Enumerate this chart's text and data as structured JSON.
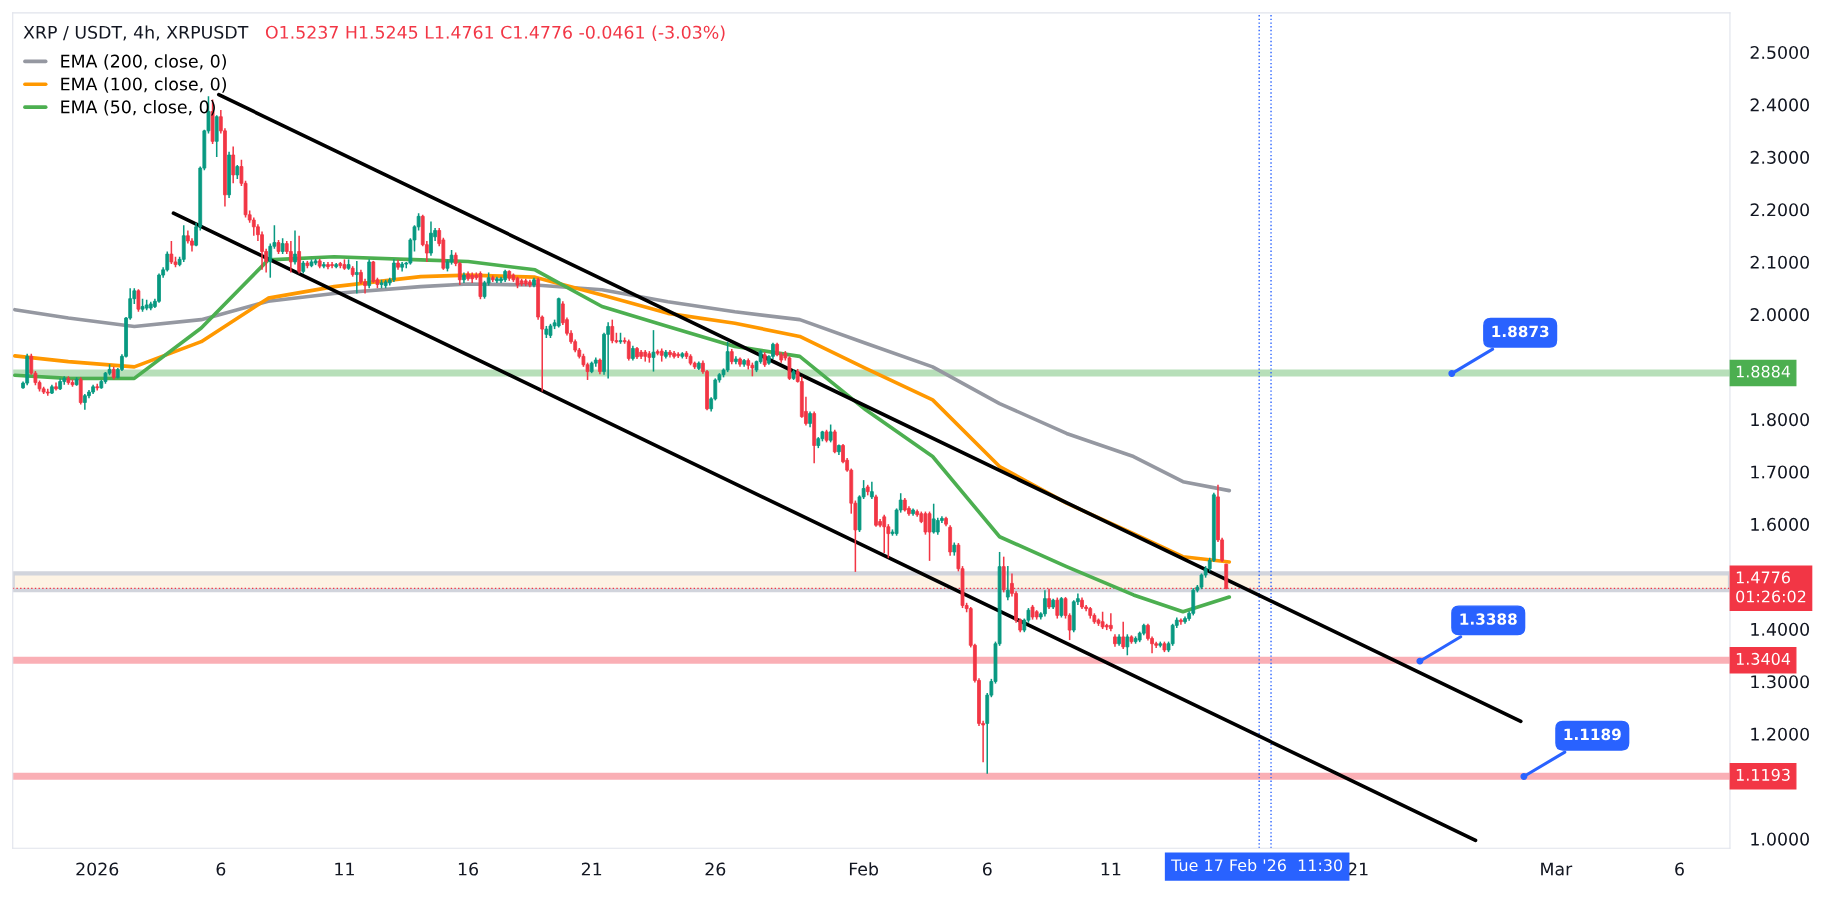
{
  "chart_data": {
    "type": "candlestick",
    "title": "XRP / USDT, 4h, XRPUSDT",
    "subtitle": "O1.5237 H1.5245 L1.4761 C1.4776 -0.0461 (-3.03%)",
    "xlim": [
      "2025-12-28T14:00",
      "2026-03-08T01:00"
    ],
    "ylim": [
      0.982,
      2.575
    ],
    "xticks": [
      {
        "value": "2026-01-01",
        "label": "2026"
      },
      {
        "value": "2026-01-06",
        "label": "6"
      },
      {
        "value": "2026-01-11",
        "label": "11"
      },
      {
        "value": "2026-01-16",
        "label": "16"
      },
      {
        "value": "2026-01-21",
        "label": "21"
      },
      {
        "value": "2026-01-26",
        "label": "26"
      },
      {
        "value": "2026-02-01",
        "label": "Feb"
      },
      {
        "value": "2026-02-06",
        "label": "6"
      },
      {
        "value": "2026-02-11",
        "label": "11"
      },
      {
        "value": "2026-02-21",
        "label": "21"
      },
      {
        "value": "2026-03-01",
        "label": "Mar"
      },
      {
        "value": "2026-03-06",
        "label": "6"
      }
    ],
    "yticks": [
      {
        "value": 1.0,
        "label": "1.0000"
      },
      {
        "value": 1.2,
        "label": "1.2000"
      },
      {
        "value": 1.3,
        "label": "1.3000"
      },
      {
        "value": 1.4,
        "label": "1.4000"
      },
      {
        "value": 1.6,
        "label": "1.6000"
      },
      {
        "value": 1.7,
        "label": "1.7000"
      },
      {
        "value": 1.8,
        "label": "1.8000"
      },
      {
        "value": 2.0,
        "label": "2.0000"
      },
      {
        "value": 2.1,
        "label": "2.1000"
      },
      {
        "value": 2.2,
        "label": "2.2000"
      },
      {
        "value": 2.3,
        "label": "2.3000"
      },
      {
        "value": 2.4,
        "label": "2.4000"
      },
      {
        "value": 2.5,
        "label": "2.5000"
      }
    ],
    "legend": "top left",
    "x": [
      "2025-12-29T00:00",
      "2025-12-29T04:00",
      "2025-12-29T08:00",
      "2025-12-29T12:00",
      "2025-12-29T16:00",
      "2025-12-29T20:00",
      "2025-12-30T00:00",
      "2025-12-30T04:00",
      "2025-12-30T08:00",
      "2025-12-30T12:00",
      "2025-12-30T16:00",
      "2025-12-30T20:00",
      "2025-12-31T00:00",
      "2025-12-31T04:00",
      "2025-12-31T08:00",
      "2025-12-31T12:00",
      "2025-12-31T16:00",
      "2025-12-31T20:00",
      "2026-01-01T00:00",
      "2026-01-01T04:00",
      "2026-01-01T08:00",
      "2026-01-01T12:00",
      "2026-01-01T16:00",
      "2026-01-01T20:00",
      "2026-01-02T00:00",
      "2026-01-02T04:00",
      "2026-01-02T08:00",
      "2026-01-02T12:00",
      "2026-01-02T16:00",
      "2026-01-02T20:00",
      "2026-01-03T00:00",
      "2026-01-03T04:00",
      "2026-01-03T08:00",
      "2026-01-03T12:00",
      "2026-01-03T16:00",
      "2026-01-03T20:00",
      "2026-01-04T00:00",
      "2026-01-04T04:00",
      "2026-01-04T08:00",
      "2026-01-04T12:00",
      "2026-01-04T16:00",
      "2026-01-04T20:00",
      "2026-01-05T00:00",
      "2026-01-05T04:00",
      "2026-01-05T08:00",
      "2026-01-05T12:00",
      "2026-01-05T16:00",
      "2026-01-05T20:00",
      "2026-01-06T00:00",
      "2026-01-06T04:00",
      "2026-01-06T08:00",
      "2026-01-06T12:00",
      "2026-01-06T16:00",
      "2026-01-06T20:00",
      "2026-01-07T00:00",
      "2026-01-07T04:00",
      "2026-01-07T08:00",
      "2026-01-07T12:00",
      "2026-01-07T16:00",
      "2026-01-07T20:00",
      "2026-01-08T00:00",
      "2026-01-08T04:00",
      "2026-01-08T08:00",
      "2026-01-08T12:00",
      "2026-01-08T16:00",
      "2026-01-08T20:00",
      "2026-01-09T00:00",
      "2026-01-09T04:00",
      "2026-01-09T08:00",
      "2026-01-09T12:00",
      "2026-01-09T16:00",
      "2026-01-09T20:00",
      "2026-01-10T00:00",
      "2026-01-10T04:00",
      "2026-01-10T08:00",
      "2026-01-10T12:00",
      "2026-01-10T16:00",
      "2026-01-10T20:00",
      "2026-01-11T00:00",
      "2026-01-11T04:00",
      "2026-01-11T08:00",
      "2026-01-11T12:00",
      "2026-01-11T16:00",
      "2026-01-11T20:00",
      "2026-01-12T00:00",
      "2026-01-12T04:00",
      "2026-01-12T08:00",
      "2026-01-12T12:00",
      "2026-01-12T16:00",
      "2026-01-12T20:00",
      "2026-01-13T00:00",
      "2026-01-13T04:00",
      "2026-01-13T08:00",
      "2026-01-13T12:00",
      "2026-01-13T16:00",
      "2026-01-13T20:00",
      "2026-01-14T00:00",
      "2026-01-14T04:00",
      "2026-01-14T08:00",
      "2026-01-14T12:00",
      "2026-01-14T16:00",
      "2026-01-14T20:00",
      "2026-01-15T00:00",
      "2026-01-15T04:00",
      "2026-01-15T08:00",
      "2026-01-15T12:00",
      "2026-01-15T16:00",
      "2026-01-15T20:00",
      "2026-01-16T00:00",
      "2026-01-16T04:00",
      "2026-01-16T08:00",
      "2026-01-16T12:00",
      "2026-01-16T16:00",
      "2026-01-16T20:00",
      "2026-01-17T00:00",
      "2026-01-17T04:00",
      "2026-01-17T08:00",
      "2026-01-17T12:00",
      "2026-01-17T16:00",
      "2026-01-17T20:00",
      "2026-01-18T00:00",
      "2026-01-18T04:00",
      "2026-01-18T08:00",
      "2026-01-18T12:00",
      "2026-01-18T16:00",
      "2026-01-18T20:00",
      "2026-01-19T00:00",
      "2026-01-19T04:00",
      "2026-01-19T08:00",
      "2026-01-19T12:00",
      "2026-01-19T16:00",
      "2026-01-19T20:00",
      "2026-01-20T00:00",
      "2026-01-20T04:00",
      "2026-01-20T08:00",
      "2026-01-20T12:00",
      "2026-01-20T16:00",
      "2026-01-20T20:00",
      "2026-01-21T00:00",
      "2026-01-21T04:00",
      "2026-01-21T08:00",
      "2026-01-21T12:00",
      "2026-01-21T16:00",
      "2026-01-21T20:00",
      "2026-01-22T00:00",
      "2026-01-22T04:00",
      "2026-01-22T08:00",
      "2026-01-22T12:00",
      "2026-01-22T16:00",
      "2026-01-22T20:00",
      "2026-01-23T00:00",
      "2026-01-23T04:00",
      "2026-01-23T08:00",
      "2026-01-23T12:00",
      "2026-01-23T16:00",
      "2026-01-23T20:00",
      "2026-01-24T00:00",
      "2026-01-24T04:00",
      "2026-01-24T08:00",
      "2026-01-24T12:00",
      "2026-01-24T16:00",
      "2026-01-24T20:00",
      "2026-01-25T00:00",
      "2026-01-25T04:00",
      "2026-01-25T08:00",
      "2026-01-25T12:00",
      "2026-01-25T16:00",
      "2026-01-25T20:00",
      "2026-01-26T00:00",
      "2026-01-26T04:00",
      "2026-01-26T08:00",
      "2026-01-26T12:00",
      "2026-01-26T16:00",
      "2026-01-26T20:00",
      "2026-01-27T00:00",
      "2026-01-27T04:00",
      "2026-01-27T08:00",
      "2026-01-27T12:00",
      "2026-01-27T16:00",
      "2026-01-27T20:00",
      "2026-01-28T00:00",
      "2026-01-28T04:00",
      "2026-01-28T08:00",
      "2026-01-28T12:00",
      "2026-01-28T16:00",
      "2026-01-28T20:00",
      "2026-01-29T00:00",
      "2026-01-29T04:00",
      "2026-01-29T08:00",
      "2026-01-29T12:00",
      "2026-01-29T16:00",
      "2026-01-29T20:00",
      "2026-01-30T00:00",
      "2026-01-30T04:00",
      "2026-01-30T08:00",
      "2026-01-30T12:00",
      "2026-01-30T16:00",
      "2026-01-30T20:00",
      "2026-01-31T00:00",
      "2026-01-31T04:00",
      "2026-01-31T08:00",
      "2026-01-31T12:00",
      "2026-01-31T16:00",
      "2026-01-31T20:00",
      "2026-02-01T00:00",
      "2026-02-01T04:00",
      "2026-02-01T08:00",
      "2026-02-01T12:00",
      "2026-02-01T16:00",
      "2026-02-01T20:00",
      "2026-02-02T00:00",
      "2026-02-02T04:00",
      "2026-02-02T08:00",
      "2026-02-02T12:00",
      "2026-02-02T16:00",
      "2026-02-02T20:00",
      "2026-02-03T00:00",
      "2026-02-03T04:00",
      "2026-02-03T08:00",
      "2026-02-03T12:00",
      "2026-02-03T16:00",
      "2026-02-03T20:00",
      "2026-02-04T00:00",
      "2026-02-04T04:00",
      "2026-02-04T08:00",
      "2026-02-04T12:00",
      "2026-02-04T16:00",
      "2026-02-04T20:00",
      "2026-02-05T00:00",
      "2026-02-05T04:00",
      "2026-02-05T08:00",
      "2026-02-05T12:00",
      "2026-02-05T16:00",
      "2026-02-05T20:00",
      "2026-02-06T00:00",
      "2026-02-06T04:00",
      "2026-02-06T08:00",
      "2026-02-06T12:00",
      "2026-02-06T16:00",
      "2026-02-06T20:00",
      "2026-02-07T00:00",
      "2026-02-07T04:00",
      "2026-02-07T08:00",
      "2026-02-07T12:00",
      "2026-02-07T16:00",
      "2026-02-07T20:00",
      "2026-02-08T00:00",
      "2026-02-08T04:00",
      "2026-02-08T08:00",
      "2026-02-08T12:00",
      "2026-02-08T16:00",
      "2026-02-08T20:00",
      "2026-02-09T00:00",
      "2026-02-09T04:00",
      "2026-02-09T08:00",
      "2026-02-09T12:00",
      "2026-02-09T16:00",
      "2026-02-09T20:00",
      "2026-02-10T00:00",
      "2026-02-10T04:00",
      "2026-02-10T08:00",
      "2026-02-10T12:00",
      "2026-02-10T16:00",
      "2026-02-10T20:00",
      "2026-02-11T00:00",
      "2026-02-11T04:00",
      "2026-02-11T08:00",
      "2026-02-11T12:00",
      "2026-02-11T16:00",
      "2026-02-11T20:00",
      "2026-02-12T00:00",
      "2026-02-12T04:00",
      "2026-02-12T08:00",
      "2026-02-12T12:00",
      "2026-02-12T16:00",
      "2026-02-12T20:00",
      "2026-02-13T00:00",
      "2026-02-13T04:00",
      "2026-02-13T08:00",
      "2026-02-13T12:00",
      "2026-02-13T16:00",
      "2026-02-13T20:00",
      "2026-02-14T00:00",
      "2026-02-14T04:00",
      "2026-02-14T08:00",
      "2026-02-14T12:00",
      "2026-02-14T16:00",
      "2026-02-14T20:00",
      "2026-02-15T00:00",
      "2026-02-15T04:00",
      "2026-02-15T08:00",
      "2026-02-15T12:00",
      "2026-02-15T16:00"
    ],
    "ohlc": [
      [
        1.86,
        1.872,
        1.858,
        1.869
      ],
      [
        1.869,
        1.925,
        1.865,
        1.92
      ],
      [
        1.92,
        1.925,
        1.885,
        1.888
      ],
      [
        1.888,
        1.892,
        1.865,
        1.87
      ],
      [
        1.87,
        1.874,
        1.853,
        1.858
      ],
      [
        1.858,
        1.862,
        1.848,
        1.852
      ],
      [
        1.852,
        1.858,
        1.845,
        1.85
      ],
      [
        1.85,
        1.866,
        1.848,
        1.862
      ],
      [
        1.862,
        1.87,
        1.855,
        1.858
      ],
      [
        1.858,
        1.878,
        1.856,
        1.872
      ],
      [
        1.872,
        1.882,
        1.866,
        1.878
      ],
      [
        1.878,
        1.882,
        1.866,
        1.87
      ],
      [
        1.87,
        1.876,
        1.862,
        1.866
      ],
      [
        1.866,
        1.88,
        1.864,
        1.876
      ],
      [
        1.876,
        1.88,
        1.828,
        1.832
      ],
      [
        1.832,
        1.848,
        1.818,
        1.845
      ],
      [
        1.845,
        1.856,
        1.84,
        1.852
      ],
      [
        1.852,
        1.866,
        1.848,
        1.862
      ],
      [
        1.862,
        1.868,
        1.855,
        1.86
      ],
      [
        1.86,
        1.875,
        1.858,
        1.872
      ],
      [
        1.872,
        1.89,
        1.868,
        1.888
      ],
      [
        1.888,
        1.905,
        1.884,
        1.895
      ],
      [
        1.895,
        1.9,
        1.876,
        1.88
      ],
      [
        1.88,
        1.898,
        1.878,
        1.895
      ],
      [
        1.895,
        1.924,
        1.892,
        1.92
      ],
      [
        1.92,
        1.995,
        1.918,
        1.993
      ],
      [
        1.993,
        2.05,
        1.99,
        2.03
      ],
      [
        2.03,
        2.05,
        2.02,
        2.045
      ],
      [
        2.045,
        2.048,
        2.005,
        2.01
      ],
      [
        2.01,
        2.03,
        2.005,
        2.015
      ],
      [
        2.012,
        2.028,
        2.008,
        2.018
      ],
      [
        2.012,
        2.024,
        2.008,
        2.02
      ],
      [
        2.015,
        2.03,
        2.012,
        2.025
      ],
      [
        2.025,
        2.078,
        2.022,
        2.075
      ],
      [
        2.075,
        2.09,
        2.07,
        2.085
      ],
      [
        2.085,
        2.12,
        2.082,
        2.115
      ],
      [
        2.115,
        2.14,
        2.096,
        2.1
      ],
      [
        2.1,
        2.11,
        2.09,
        2.095
      ],
      [
        2.095,
        2.11,
        2.092,
        2.105
      ],
      [
        2.105,
        2.17,
        2.1,
        2.15
      ],
      [
        2.15,
        2.16,
        2.135,
        2.14
      ],
      [
        2.14,
        2.145,
        2.12,
        2.132
      ],
      [
        2.132,
        2.175,
        2.13,
        2.167
      ],
      [
        2.167,
        2.282,
        2.16,
        2.279
      ],
      [
        2.279,
        2.352,
        2.275,
        2.35
      ],
      [
        2.35,
        2.416,
        2.345,
        2.387
      ],
      [
        2.387,
        2.41,
        2.325,
        2.33
      ],
      [
        2.33,
        2.38,
        2.3,
        2.377
      ],
      [
        2.377,
        2.39,
        2.345,
        2.35
      ],
      [
        2.35,
        2.355,
        2.206,
        2.228
      ],
      [
        2.228,
        2.31,
        2.222,
        2.304
      ],
      [
        2.304,
        2.32,
        2.25,
        2.266
      ],
      [
        2.266,
        2.285,
        2.258,
        2.282
      ],
      [
        2.282,
        2.295,
        2.245,
        2.25
      ],
      [
        2.25,
        2.255,
        2.185,
        2.19
      ],
      [
        2.19,
        2.198,
        2.175,
        2.18
      ],
      [
        2.18,
        2.185,
        2.15,
        2.167
      ],
      [
        2.167,
        2.172,
        2.14,
        2.152
      ],
      [
        2.152,
        2.158,
        2.085,
        2.12
      ],
      [
        2.12,
        2.125,
        2.08,
        2.101
      ],
      [
        2.101,
        2.135,
        2.07,
        2.13
      ],
      [
        2.13,
        2.17,
        2.125,
        2.137
      ],
      [
        2.137,
        2.142,
        2.115,
        2.12
      ],
      [
        2.12,
        2.145,
        2.115,
        2.135
      ],
      [
        2.135,
        2.14,
        2.115,
        2.12
      ],
      [
        2.12,
        2.14,
        2.08,
        2.1
      ],
      [
        2.1,
        2.16,
        2.095,
        2.115
      ],
      [
        2.12,
        2.15,
        2.078,
        2.082
      ],
      [
        2.082,
        2.102,
        2.078,
        2.098
      ],
      [
        2.098,
        2.102,
        2.088,
        2.093
      ],
      [
        2.093,
        2.105,
        2.09,
        2.1
      ],
      [
        2.098,
        2.106,
        2.094,
        2.102
      ],
      [
        2.102,
        2.106,
        2.088,
        2.092
      ],
      [
        2.092,
        2.1,
        2.088,
        2.095
      ],
      [
        2.095,
        2.1,
        2.086,
        2.091
      ],
      [
        2.095,
        2.1,
        2.088,
        2.093
      ],
      [
        2.091,
        2.098,
        2.088,
        2.095
      ],
      [
        2.097,
        2.1,
        2.088,
        2.093
      ],
      [
        2.095,
        2.105,
        2.085,
        2.088
      ],
      [
        2.088,
        2.105,
        2.085,
        2.095
      ],
      [
        2.088,
        2.092,
        2.072,
        2.076
      ],
      [
        2.076,
        2.102,
        2.04,
        2.08
      ],
      [
        2.08,
        2.085,
        2.058,
        2.062
      ],
      [
        2.062,
        2.068,
        2.04,
        2.055
      ],
      [
        2.055,
        2.105,
        2.05,
        2.1
      ],
      [
        2.1,
        2.102,
        2.06,
        2.063
      ],
      [
        2.066,
        2.07,
        2.05,
        2.057
      ],
      [
        2.057,
        2.066,
        2.05,
        2.06
      ],
      [
        2.055,
        2.066,
        2.05,
        2.062
      ],
      [
        2.06,
        2.07,
        2.055,
        2.066
      ],
      [
        2.066,
        2.105,
        2.062,
        2.098
      ],
      [
        2.098,
        2.104,
        2.085,
        2.09
      ],
      [
        2.09,
        2.1,
        2.082,
        2.096
      ],
      [
        2.096,
        2.1,
        2.088,
        2.098
      ],
      [
        2.098,
        2.145,
        2.095,
        2.142
      ],
      [
        2.142,
        2.17,
        2.12,
        2.167
      ],
      [
        2.167,
        2.193,
        2.16,
        2.187
      ],
      [
        2.187,
        2.19,
        2.13,
        2.133
      ],
      [
        2.133,
        2.14,
        2.1,
        2.117
      ],
      [
        2.117,
        2.177,
        2.112,
        2.155
      ],
      [
        2.148,
        2.165,
        2.14,
        2.16
      ],
      [
        2.16,
        2.165,
        2.13,
        2.135
      ],
      [
        2.142,
        2.146,
        2.085,
        2.088
      ],
      [
        2.088,
        2.105,
        2.082,
        2.1
      ],
      [
        2.1,
        2.123,
        2.095,
        2.113
      ],
      [
        2.113,
        2.118,
        2.092,
        2.097
      ],
      [
        2.097,
        2.1,
        2.056,
        2.066
      ],
      [
        2.066,
        2.08,
        2.06,
        2.075
      ],
      [
        2.077,
        2.082,
        2.064,
        2.068
      ],
      [
        2.075,
        2.08,
        2.06,
        2.068
      ],
      [
        2.075,
        2.08,
        2.066,
        2.07
      ],
      [
        2.078,
        2.082,
        2.029,
        2.034
      ],
      [
        2.034,
        2.064,
        2.03,
        2.06
      ],
      [
        2.06,
        2.08,
        2.055,
        2.07
      ],
      [
        2.07,
        2.074,
        2.062,
        2.066
      ],
      [
        2.064,
        2.072,
        2.06,
        2.068
      ],
      [
        2.064,
        2.072,
        2.06,
        2.068
      ],
      [
        2.066,
        2.085,
        2.062,
        2.082
      ],
      [
        2.082,
        2.084,
        2.064,
        2.069
      ],
      [
        2.075,
        2.078,
        2.062,
        2.066
      ],
      [
        2.069,
        2.072,
        2.05,
        2.056
      ],
      [
        2.064,
        2.068,
        2.054,
        2.058
      ],
      [
        2.064,
        2.068,
        2.054,
        2.058
      ],
      [
        2.062,
        2.066,
        2.052,
        2.056
      ],
      [
        2.056,
        2.07,
        2.052,
        2.066
      ],
      [
        2.066,
        2.07,
        1.99,
        1.995
      ],
      [
        1.995,
        1.998,
        1.853,
        1.972
      ],
      [
        1.962,
        1.978,
        1.955,
        1.972
      ],
      [
        1.96,
        1.982,
        1.955,
        1.978
      ],
      [
        1.978,
        1.99,
        1.972,
        1.984
      ],
      [
        1.978,
        2.032,
        1.975,
        2.03
      ],
      [
        2.02,
        2.025,
        1.98,
        1.984
      ],
      [
        1.99,
        1.994,
        1.96,
        1.964
      ],
      [
        1.964,
        1.97,
        1.944,
        1.948
      ],
      [
        1.948,
        1.952,
        1.928,
        1.932
      ],
      [
        1.932,
        1.936,
        1.916,
        1.92
      ],
      [
        1.92,
        1.925,
        1.9,
        1.904
      ],
      [
        1.904,
        1.908,
        1.875,
        1.891
      ],
      [
        1.891,
        1.91,
        1.888,
        1.907
      ],
      [
        1.907,
        1.918,
        1.9,
        1.913
      ],
      [
        1.913,
        1.916,
        1.886,
        1.891
      ],
      [
        1.891,
        1.965,
        1.885,
        1.962
      ],
      [
        1.962,
        1.985,
        1.878,
        1.977
      ],
      [
        1.977,
        1.99,
        1.945,
        1.95
      ],
      [
        1.95,
        1.965,
        1.945,
        1.948
      ],
      [
        1.948,
        1.965,
        1.944,
        1.95
      ],
      [
        1.95,
        1.956,
        1.944,
        1.948
      ],
      [
        1.948,
        1.952,
        1.912,
        1.916
      ],
      [
        1.916,
        1.94,
        1.912,
        1.935
      ],
      [
        1.935,
        1.938,
        1.915,
        1.919
      ],
      [
        1.928,
        1.932,
        1.915,
        1.92
      ],
      [
        1.928,
        1.932,
        1.91,
        1.92
      ],
      [
        1.925,
        1.93,
        1.908,
        1.918
      ],
      [
        1.918,
        1.97,
        1.891,
        1.928
      ],
      [
        1.929,
        1.933,
        1.922,
        1.926
      ],
      [
        1.93,
        1.935,
        1.91,
        1.922
      ],
      [
        1.92,
        1.932,
        1.916,
        1.928
      ],
      [
        1.928,
        1.932,
        1.918,
        1.923
      ],
      [
        1.926,
        1.93,
        1.916,
        1.92
      ],
      [
        1.924,
        1.928,
        1.917,
        1.921
      ],
      [
        1.92,
        1.928,
        1.916,
        1.925
      ],
      [
        1.926,
        1.93,
        1.915,
        1.92
      ],
      [
        1.92,
        1.924,
        1.903,
        1.907
      ],
      [
        1.907,
        1.91,
        1.896,
        1.9
      ],
      [
        1.897,
        1.91,
        1.894,
        1.907
      ],
      [
        1.907,
        1.912,
        1.887,
        1.891
      ],
      [
        1.891,
        1.894,
        1.817,
        1.82
      ],
      [
        1.82,
        1.842,
        1.815,
        1.839
      ],
      [
        1.839,
        1.878,
        1.836,
        1.875
      ],
      [
        1.875,
        1.888,
        1.87,
        1.885
      ],
      [
        1.885,
        1.897,
        1.88,
        1.894
      ],
      [
        1.894,
        1.948,
        1.89,
        1.929
      ],
      [
        1.929,
        1.934,
        1.905,
        1.91
      ],
      [
        1.91,
        1.92,
        1.905,
        1.915
      ],
      [
        1.915,
        1.918,
        1.9,
        1.905
      ],
      [
        1.905,
        1.915,
        1.9,
        1.912
      ],
      [
        1.912,
        1.916,
        1.895,
        1.903
      ],
      [
        1.903,
        1.908,
        1.882,
        1.898
      ],
      [
        1.894,
        1.912,
        1.89,
        1.91
      ],
      [
        1.91,
        1.932,
        1.906,
        1.929
      ],
      [
        1.923,
        1.928,
        1.9,
        1.904
      ],
      [
        1.907,
        1.922,
        1.904,
        1.92
      ],
      [
        1.92,
        1.946,
        1.915,
        1.943
      ],
      [
        1.943,
        1.946,
        1.92,
        1.923
      ],
      [
        1.923,
        1.928,
        1.908,
        1.913
      ],
      [
        1.926,
        1.93,
        1.912,
        1.917
      ],
      [
        1.917,
        1.92,
        1.875,
        1.878
      ],
      [
        1.878,
        1.895,
        1.875,
        1.891
      ],
      [
        1.891,
        1.896,
        1.87,
        1.872
      ],
      [
        1.872,
        1.881,
        1.803,
        1.805
      ],
      [
        1.815,
        1.843,
        1.788,
        1.792
      ],
      [
        1.792,
        1.815,
        1.785,
        1.811
      ],
      [
        1.811,
        1.815,
        1.716,
        1.75
      ],
      [
        1.75,
        1.766,
        1.745,
        1.763
      ],
      [
        1.763,
        1.778,
        1.758,
        1.776
      ],
      [
        1.776,
        1.78,
        1.756,
        1.76
      ],
      [
        1.76,
        1.79,
        1.756,
        1.776
      ],
      [
        1.776,
        1.78,
        1.735,
        1.738
      ],
      [
        1.738,
        1.752,
        1.732,
        1.75
      ],
      [
        1.75,
        1.753,
        1.716,
        1.719
      ],
      [
        1.722,
        1.726,
        1.7,
        1.703
      ],
      [
        1.703,
        1.706,
        1.62,
        1.64
      ],
      [
        1.64,
        1.645,
        1.509,
        1.589
      ],
      [
        1.589,
        1.655,
        1.585,
        1.652
      ],
      [
        1.652,
        1.684,
        1.648,
        1.668
      ],
      [
        1.671,
        1.675,
        1.655,
        1.662
      ],
      [
        1.652,
        1.681,
        1.648,
        1.662
      ],
      [
        1.652,
        1.656,
        1.595,
        1.598
      ],
      [
        1.605,
        1.61,
        1.594,
        1.598
      ],
      [
        1.614,
        1.618,
        1.545,
        1.595
      ],
      [
        1.595,
        1.6,
        1.535,
        1.582
      ],
      [
        1.582,
        1.59,
        1.578,
        1.585
      ],
      [
        1.582,
        1.63,
        1.578,
        1.627
      ],
      [
        1.627,
        1.659,
        1.622,
        1.646
      ],
      [
        1.646,
        1.65,
        1.624,
        1.627
      ],
      [
        1.63,
        1.634,
        1.616,
        1.62
      ],
      [
        1.62,
        1.63,
        1.616,
        1.627
      ],
      [
        1.624,
        1.628,
        1.614,
        1.618
      ],
      [
        1.62,
        1.624,
        1.602,
        1.605
      ],
      [
        1.62,
        1.624,
        1.58,
        1.585
      ],
      [
        1.62,
        1.624,
        1.53,
        1.585
      ],
      [
        1.585,
        1.639,
        1.582,
        1.61
      ],
      [
        1.585,
        1.612,
        1.58,
        1.607
      ],
      [
        1.607,
        1.615,
        1.602,
        1.611
      ],
      [
        1.611,
        1.614,
        1.596,
        1.6
      ],
      [
        1.594,
        1.598,
        1.54,
        1.547
      ],
      [
        1.547,
        1.565,
        1.54,
        1.56
      ],
      [
        1.56,
        1.564,
        1.51,
        1.515
      ],
      [
        1.515,
        1.52,
        1.44,
        1.445
      ],
      [
        1.445,
        1.45,
        1.432,
        1.439
      ],
      [
        1.439,
        1.442,
        1.365,
        1.369
      ],
      [
        1.369,
        1.372,
        1.298,
        1.302
      ],
      [
        1.302,
        1.306,
        1.215,
        1.22
      ],
      [
        1.22,
        1.225,
        1.146,
        1.217
      ],
      [
        1.22,
        1.278,
        1.124,
        1.274
      ],
      [
        1.274,
        1.305,
        1.27,
        1.3
      ],
      [
        1.3,
        1.376,
        1.296,
        1.372
      ],
      [
        1.372,
        1.547,
        1.368,
        1.519
      ],
      [
        1.519,
        1.538,
        1.47,
        1.475
      ],
      [
        1.461,
        1.52,
        1.455,
        1.474
      ],
      [
        1.487,
        1.506,
        1.462,
        1.468
      ],
      [
        1.468,
        1.472,
        1.412,
        1.417
      ],
      [
        1.417,
        1.42,
        1.394,
        1.398
      ],
      [
        1.398,
        1.42,
        1.394,
        1.417
      ],
      [
        1.417,
        1.44,
        1.412,
        1.436
      ],
      [
        1.442,
        1.446,
        1.418,
        1.423
      ],
      [
        1.433,
        1.436,
        1.418,
        1.423
      ],
      [
        1.423,
        1.432,
        1.418,
        1.429
      ],
      [
        1.429,
        1.474,
        1.424,
        1.458
      ],
      [
        1.458,
        1.477,
        1.438,
        1.442
      ],
      [
        1.442,
        1.458,
        1.438,
        1.455
      ],
      [
        1.455,
        1.46,
        1.42,
        1.426
      ],
      [
        1.426,
        1.461,
        1.422,
        1.458
      ],
      [
        1.458,
        1.461,
        1.42,
        1.426
      ],
      [
        1.426,
        1.43,
        1.379,
        1.398
      ],
      [
        1.398,
        1.455,
        1.394,
        1.452
      ],
      [
        1.452,
        1.468,
        1.446,
        1.458
      ],
      [
        1.455,
        1.46,
        1.438,
        1.442
      ],
      [
        1.442,
        1.446,
        1.434,
        1.439
      ],
      [
        1.439,
        1.442,
        1.42,
        1.426
      ],
      [
        1.426,
        1.43,
        1.41,
        1.414
      ],
      [
        1.417,
        1.42,
        1.406,
        1.411
      ],
      [
        1.414,
        1.433,
        1.4,
        1.404
      ],
      [
        1.407,
        1.41,
        1.398,
        1.404
      ],
      [
        1.407,
        1.43,
        1.396,
        1.401
      ],
      [
        1.385,
        1.39,
        1.366,
        1.372
      ],
      [
        1.372,
        1.39,
        1.368,
        1.385
      ],
      [
        1.385,
        1.414,
        1.362,
        1.366
      ],
      [
        1.366,
        1.39,
        1.35,
        1.385
      ],
      [
        1.385,
        1.388,
        1.372,
        1.376
      ],
      [
        1.376,
        1.386,
        1.372,
        1.382
      ],
      [
        1.379,
        1.395,
        1.375,
        1.392
      ],
      [
        1.392,
        1.41,
        1.388,
        1.407
      ],
      [
        1.407,
        1.41,
        1.378,
        1.382
      ],
      [
        1.382,
        1.386,
        1.354,
        1.372
      ],
      [
        1.372,
        1.376,
        1.364,
        1.369
      ],
      [
        1.369,
        1.376,
        1.365,
        1.372
      ],
      [
        1.372,
        1.376,
        1.356,
        1.36
      ],
      [
        1.36,
        1.376,
        1.356,
        1.372
      ],
      [
        1.372,
        1.41,
        1.368,
        1.407
      ],
      [
        1.407,
        1.422,
        1.402,
        1.417
      ],
      [
        1.417,
        1.42,
        1.408,
        1.414
      ],
      [
        1.414,
        1.424,
        1.41,
        1.42
      ],
      [
        1.42,
        1.434,
        1.416,
        1.43
      ],
      [
        1.43,
        1.478,
        1.426,
        1.474
      ],
      [
        1.474,
        1.484,
        1.47,
        1.48
      ],
      [
        1.48,
        1.506,
        1.476,
        1.503
      ],
      [
        1.503,
        1.52,
        1.498,
        1.515
      ],
      [
        1.515,
        1.536,
        1.51,
        1.531
      ],
      [
        1.531,
        1.66,
        1.528,
        1.656
      ],
      [
        1.652,
        1.675,
        1.566,
        1.57
      ],
      [
        1.57,
        1.574,
        1.528,
        1.531
      ],
      [
        1.5237,
        1.5245,
        1.4761,
        1.4776
      ]
    ],
    "series": [
      {
        "name": "EMA (200, close, 0)",
        "type": "line",
        "color": "#9598a1",
        "x": [
          "2025-12-28T16:00",
          "2025-12-30T20:00",
          "2026-01-02T12:00",
          "2026-01-05T05:00",
          "2026-01-07T22:00",
          "2026-01-10T14:00",
          "2026-01-14T02:00",
          "2026-01-16T00:00",
          "2026-01-18T17:00",
          "2026-01-21T10:00",
          "2026-01-24T02:00",
          "2026-01-26T19:00",
          "2026-01-29T10:00",
          "2026-02-01T02:00",
          "2026-02-03T19:00",
          "2026-02-06T12:00",
          "2026-02-09T05:00",
          "2026-02-11T22:00",
          "2026-02-13T22:00",
          "2026-02-15T19:00"
        ],
        "values": [
          2.009,
          1.993,
          1.977,
          1.99,
          2.025,
          2.04,
          2.053,
          2.058,
          2.056,
          2.047,
          2.024,
          2.005,
          1.99,
          1.945,
          1.9,
          1.83,
          1.773,
          1.729,
          1.681,
          1.664
        ]
      },
      {
        "name": "EMA (100, close, 0)",
        "type": "line",
        "color": "#ff9800",
        "x": [
          "2025-12-28T16:00",
          "2025-12-30T20:00",
          "2026-01-02T12:00",
          "2026-01-05T05:00",
          "2026-01-07T22:00",
          "2026-01-10T14:00",
          "2026-01-14T02:00",
          "2026-01-16T00:00",
          "2026-01-18T17:00",
          "2026-01-21T10:00",
          "2026-01-24T02:00",
          "2026-01-26T19:00",
          "2026-01-29T10:00",
          "2026-02-01T02:00",
          "2026-02-03T19:00",
          "2026-02-06T12:00",
          "2026-02-09T05:00",
          "2026-02-11T22:00",
          "2026-02-13T22:00",
          "2026-02-15T19:00"
        ],
        "values": [
          1.921,
          1.91,
          1.9,
          1.948,
          2.031,
          2.053,
          2.072,
          2.075,
          2.071,
          2.037,
          2.002,
          1.983,
          1.958,
          1.897,
          1.837,
          1.71,
          1.64,
          1.582,
          1.538,
          1.528
        ]
      },
      {
        "name": "EMA (50, close, 0)",
        "type": "line",
        "color": "#4caf50",
        "x": [
          "2025-12-28T16:00",
          "2025-12-30T20:00",
          "2026-01-02T12:00",
          "2026-01-05T05:00",
          "2026-01-07T22:00",
          "2026-01-10T14:00",
          "2026-01-14T02:00",
          "2026-01-16T00:00",
          "2026-01-18T17:00",
          "2026-01-21T10:00",
          "2026-01-24T02:00",
          "2026-01-26T19:00",
          "2026-01-29T10:00",
          "2026-02-01T02:00",
          "2026-02-03T19:00",
          "2026-02-06T12:00",
          "2026-02-09T05:00",
          "2026-02-11T22:00",
          "2026-02-13T22:00",
          "2026-02-15T19:00"
        ],
        "values": [
          1.884,
          1.878,
          1.878,
          1.974,
          2.104,
          2.11,
          2.104,
          2.101,
          2.085,
          2.015,
          1.977,
          1.939,
          1.92,
          1.818,
          1.729,
          1.576,
          1.519,
          1.465,
          1.433,
          1.461
        ]
      },
      {
        "type": "line",
        "color": "#000000",
        "x": [
          "2026-01-05T22:00",
          "2026-02-27T14:00"
        ],
        "values": [
          2.419,
          1.224
        ]
      },
      {
        "type": "line",
        "color": "#000000",
        "x": [
          "2026-01-04T02:00",
          "2026-02-25T18:00"
        ],
        "values": [
          2.193,
          0.997
        ]
      }
    ],
    "ref_lines": [
      {
        "axis": "y",
        "value": 1.8884,
        "label": "1.8884",
        "color": "#4caf50",
        "line_style": "solid"
      },
      {
        "axis": "y",
        "value": 1.3404,
        "label": "1.3404",
        "color": "#f23645",
        "line_style": "solid"
      },
      {
        "axis": "y",
        "value": 1.1193,
        "label": "1.1193",
        "color": "#f23645",
        "line_style": "solid"
      },
      {
        "axis": "y",
        "value": 1.4776,
        "label": "1.4776\n01:26:02",
        "color": "#f23645",
        "line_style": "dotted"
      },
      {
        "axis": "x",
        "value": "2026-02-17T00:00",
        "label": null,
        "color": "#2962ff",
        "line_style": "dotted"
      },
      {
        "axis": "x",
        "value": "2026-02-17T11:30",
        "label": "Tue 17 Feb '26  11:30",
        "color": "#2962ff",
        "line_style": "dotted"
      }
    ],
    "bands": [
      {
        "axis": "y",
        "from": 1.474,
        "to": 1.506,
        "label": null,
        "color": "#d1d4dc"
      }
    ],
    "annotations": [
      {
        "text": "1.8873",
        "x": "2026-02-24T19:00",
        "y": 1.8873
      },
      {
        "text": "1.3388",
        "x": "2026-02-23T12:00",
        "y": 1.3388
      },
      {
        "text": "1.1189",
        "x": "2026-02-27T17:00",
        "y": 1.1189
      }
    ]
  }
}
